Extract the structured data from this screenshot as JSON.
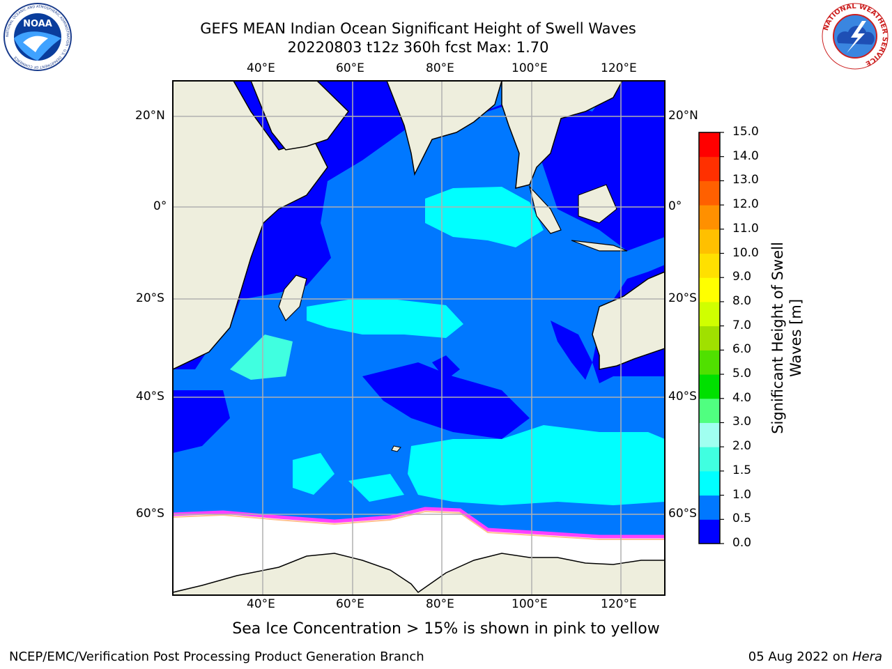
{
  "title": {
    "line1": "GEFS MEAN Indian Ocean Significant Height of Swell Waves",
    "line2": "20220803 t12z 360h fcst   Max: 1.70"
  },
  "map": {
    "lon_labels": [
      "40°E",
      "60°E",
      "80°E",
      "100°E",
      "120°E"
    ],
    "lat_labels": [
      "20°N",
      "0°",
      "20°S",
      "40°S",
      "60°S"
    ],
    "lon_range": [
      20,
      130
    ],
    "lat_range": [
      -70,
      27
    ]
  },
  "colorbar": {
    "label_line1": "Significant Height of Swell",
    "label_line2": "Waves [m]",
    "ticks": [
      "0.0",
      "0.5",
      "1.0",
      "1.5",
      "2.0",
      "3.0",
      "4.0",
      "5.0",
      "6.0",
      "7.0",
      "8.0",
      "9.0",
      "10.0",
      "11.0",
      "12.0",
      "13.0",
      "14.0",
      "15.0"
    ],
    "colors": [
      "#0000ff",
      "#0078ff",
      "#00ffff",
      "#40ffe0",
      "#a0fff0",
      "#50ff80",
      "#00e000",
      "#50e000",
      "#a0e000",
      "#d0ff00",
      "#ffff00",
      "#ffe000",
      "#ffc000",
      "#ff9000",
      "#ff6000",
      "#ff3000",
      "#ff0000"
    ]
  },
  "caption": "Sea Ice Concentration > 15% is shown in pink to yellow",
  "footer": {
    "left": "NCEP/EMC/Verification Post Processing Product Generation Branch",
    "date": "05 Aug 2022 on ",
    "host": "Hera"
  },
  "logos": {
    "noaa_text": "NOAA",
    "noaa_ring": "NATIONAL OCEANIC AND ATMOSPHERIC ADMINISTRATION · U.S. DEPARTMENT OF COMMERCE",
    "nws_ring": "NATIONAL WEATHER SERVICE"
  },
  "palette": {
    "land": "#eeeedd",
    "ocean_low": "#0000ff",
    "ocean_mid": "#0078ff",
    "ocean_high": "#00ffff",
    "ice": "#ffffff",
    "ice_edge": "#ff40ff",
    "grid": "#b0b0b0"
  }
}
